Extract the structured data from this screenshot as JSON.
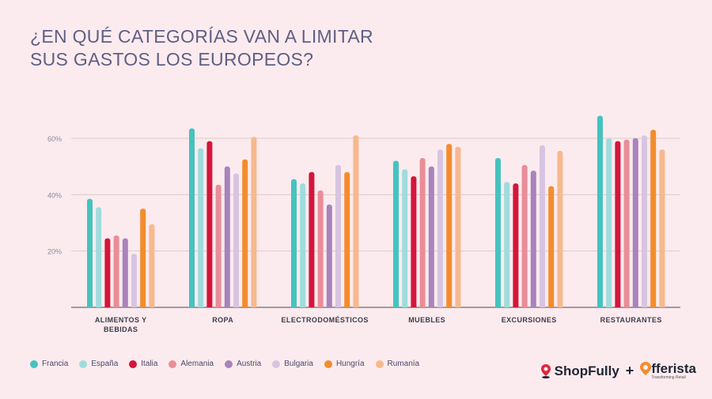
{
  "title_lines": [
    "¿EN QUÉ CATEGORÍAS VAN A LIMITAR",
    "SUS GASTOS LOS EUROPEOS?"
  ],
  "colors": {
    "Francia": "#45c3bf",
    "España": "#9edcdd",
    "Italia": "#d2163c",
    "Alemania": "#ea8d98",
    "Austria": "#a883bc",
    "Bulgaria": "#d7c4e1",
    "Hungría": "#f28d2e",
    "Rumanía": "#f7b98e",
    "grid": "#dcc9ce",
    "axis": "#6b6b6b",
    "tick_text": "#8a8a9a",
    "label_text": "#3c3c4c"
  },
  "chart_data": {
    "type": "bar",
    "title": "¿EN QUÉ CATEGORÍAS VAN A LIMITAR SUS GASTOS LOS EUROPEOS?",
    "categories": [
      [
        "ALIMENTOS Y",
        "BEBIDAS"
      ],
      [
        "ROPA"
      ],
      [
        "ELECTRODOMÉSTICOS"
      ],
      [
        "MUEBLES"
      ],
      [
        "EXCURSIONES"
      ],
      [
        "RESTAURANTES"
      ]
    ],
    "series": [
      {
        "name": "Francia",
        "values": [
          38.5,
          63.5,
          45.5,
          52,
          53,
          68
        ]
      },
      {
        "name": "España",
        "values": [
          35.5,
          56.5,
          44,
          49,
          44.5,
          60
        ]
      },
      {
        "name": "Italia",
        "values": [
          24.5,
          59,
          48,
          46.5,
          44,
          59
        ]
      },
      {
        "name": "Alemania",
        "values": [
          25.5,
          43.5,
          41.5,
          53,
          50.5,
          59.5
        ]
      },
      {
        "name": "Austria",
        "values": [
          24.5,
          50,
          36.5,
          50,
          48.5,
          60
        ]
      },
      {
        "name": "Bulgaria",
        "values": [
          19,
          47.5,
          50.5,
          56,
          57.5,
          61
        ]
      },
      {
        "name": "Hungría",
        "values": [
          35,
          52.5,
          48,
          58,
          43,
          63
        ]
      },
      {
        "name": "Rumanía",
        "values": [
          29.5,
          60.5,
          61,
          57,
          55.5,
          56
        ]
      }
    ],
    "yticks": [
      20,
      40,
      60
    ],
    "ytick_labels": [
      "20%",
      "40%",
      "60%"
    ],
    "ylim": [
      0,
      70
    ],
    "grid": true,
    "legend_position": "bottom-left",
    "xlabel": "",
    "ylabel": ""
  },
  "logos": {
    "shopfully": "ShopFully",
    "plus": "+",
    "offerista": "fferista",
    "offerista_tagline": "Transforming Retail"
  }
}
